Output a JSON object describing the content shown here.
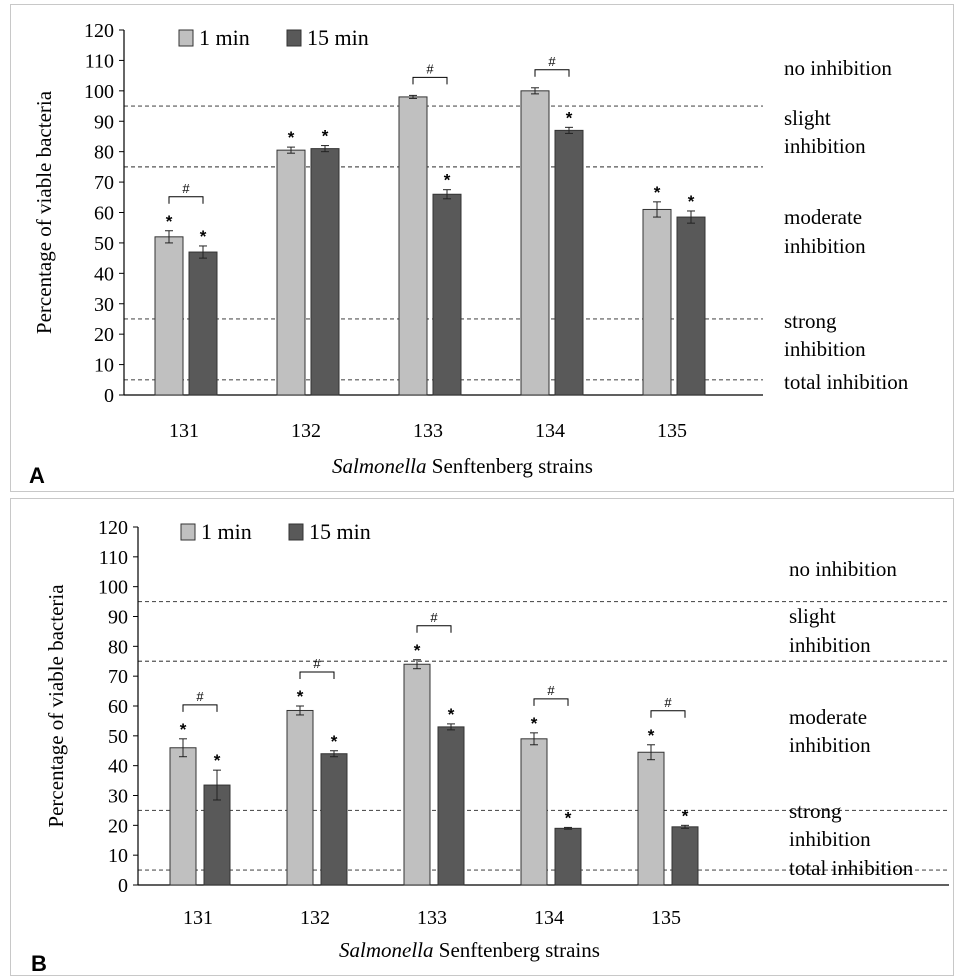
{
  "figure": {
    "panels": [
      {
        "label": "A",
        "ylabel": "Percentage of viable bacteria",
        "xlabel_italic": "Salmonella",
        "xlabel_rest": " Senftenberg strains",
        "legend": [
          "1 min",
          "15 min"
        ],
        "zones": [
          "no inhibition",
          "slight",
          "inhibition",
          "moderate",
          "inhibition",
          "strong",
          "inhibition",
          "total inhibition"
        ]
      },
      {
        "label": "B",
        "ylabel": "Percentage of viable bacteria",
        "xlabel_italic": "Salmonella",
        "xlabel_rest": " Senftenberg strains",
        "legend": [
          "1 min",
          "15 min"
        ],
        "zones": [
          "no inhibition",
          "slight",
          "inhibition",
          "moderate",
          "inhibition",
          "strong",
          "inhibition",
          "total inhibition"
        ]
      }
    ],
    "colors": {
      "series_1min": "#c0c0c0",
      "series_15min": "#595959",
      "axis": "#000000"
    }
  },
  "chart_data": [
    {
      "type": "bar",
      "panel": "A",
      "categories": [
        "131",
        "132",
        "133",
        "134",
        "135"
      ],
      "series": [
        {
          "name": "1 min",
          "values": [
            52,
            80.5,
            98,
            100,
            61
          ],
          "errors": [
            2,
            1,
            0.5,
            1,
            2.5
          ],
          "stars": [
            true,
            true,
            false,
            false,
            true
          ]
        },
        {
          "name": "15 min",
          "values": [
            47,
            81,
            66,
            87,
            58.5
          ],
          "errors": [
            2,
            1,
            1.5,
            1,
            2
          ],
          "stars": [
            true,
            true,
            true,
            true,
            true
          ]
        }
      ],
      "significance_brackets": [
        0,
        2,
        3
      ],
      "bracket_symbol": "#",
      "star_symbol": "*",
      "thresholds": [
        95,
        75,
        25,
        5
      ],
      "ylim": [
        0,
        120
      ],
      "yticks": [
        0,
        10,
        20,
        30,
        40,
        50,
        60,
        70,
        80,
        90,
        100,
        110,
        120
      ],
      "xlabel": "Salmonella Senftenberg strains",
      "ylabel": "Percentage of viable bacteria",
      "legend_position": "top-left",
      "grid": false
    },
    {
      "type": "bar",
      "panel": "B",
      "categories": [
        "131",
        "132",
        "133",
        "134",
        "135"
      ],
      "series": [
        {
          "name": "1 min",
          "values": [
            46,
            58.5,
            74,
            49,
            44.5
          ],
          "errors": [
            3,
            1.5,
            1.5,
            2,
            2.5
          ],
          "stars": [
            true,
            true,
            true,
            true,
            true
          ]
        },
        {
          "name": "15 min",
          "values": [
            33.5,
            44,
            53,
            19,
            19.5
          ],
          "errors": [
            5,
            1,
            1,
            0.3,
            0.5
          ],
          "stars": [
            true,
            true,
            true,
            true,
            true
          ]
        }
      ],
      "significance_brackets": [
        0,
        1,
        2,
        3,
        4
      ],
      "bracket_symbol": "#",
      "star_symbol": "*",
      "thresholds": [
        95,
        75,
        25,
        5
      ],
      "ylim": [
        0,
        120
      ],
      "yticks": [
        0,
        10,
        20,
        30,
        40,
        50,
        60,
        70,
        80,
        90,
        100,
        110,
        120
      ],
      "xlabel": "Salmonella Senftenberg strains",
      "ylabel": "Percentage of viable bacteria",
      "legend_position": "top-left",
      "grid": false
    }
  ]
}
